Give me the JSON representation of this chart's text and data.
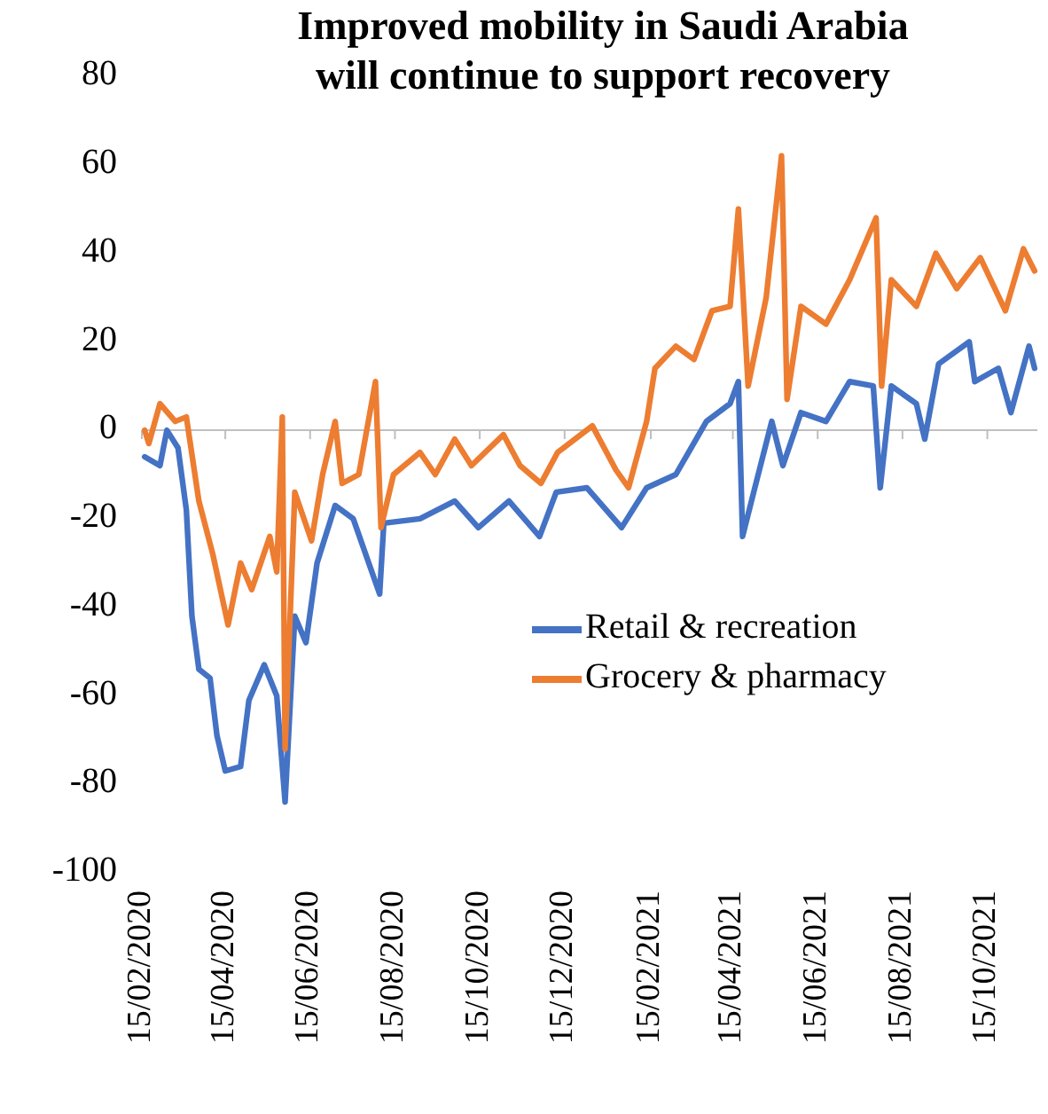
{
  "chart_data": {
    "type": "line",
    "title": "Improved mobility in Saudi Arabia\nwill continue to support recovery",
    "xlim": [
      "2020-02-15",
      "2021-11-20"
    ],
    "xticks": [
      {
        "value": "2020-02-15",
        "label": "15/02/2020"
      },
      {
        "value": "2020-04-15",
        "label": "15/04/2020"
      },
      {
        "value": "2020-06-15",
        "label": "15/06/2020"
      },
      {
        "value": "2020-08-15",
        "label": "15/08/2020"
      },
      {
        "value": "2020-10-15",
        "label": "15/10/2020"
      },
      {
        "value": "2020-12-15",
        "label": "15/12/2020"
      },
      {
        "value": "2021-02-15",
        "label": "15/02/2021"
      },
      {
        "value": "2021-04-15",
        "label": "15/04/2021"
      },
      {
        "value": "2021-06-15",
        "label": "15/06/2021"
      },
      {
        "value": "2021-08-15",
        "label": "15/08/2021"
      },
      {
        "value": "2021-10-15",
        "label": "15/10/2021"
      }
    ],
    "ylim": [
      -100,
      80
    ],
    "yticks": [
      -100,
      -80,
      -60,
      -40,
      -20,
      0,
      20,
      40,
      60,
      80
    ],
    "grid": false,
    "ref_lines": [
      {
        "axis": "y",
        "value": 0,
        "color": "#bfbfbf"
      }
    ],
    "legend": "right",
    "line_style": "solid",
    "marker": "none",
    "series": [
      {
        "name": "Retail & recreation",
        "color": "#4472c4",
        "x": [
          "2020-02-17",
          "2020-02-28",
          "2020-03-04",
          "2020-03-12",
          "2020-03-18",
          "2020-03-22",
          "2020-03-27",
          "2020-04-04",
          "2020-04-09",
          "2020-04-15",
          "2020-04-26",
          "2020-05-02",
          "2020-05-13",
          "2020-05-22",
          "2020-05-28",
          "2020-06-04",
          "2020-06-12",
          "2020-06-20",
          "2020-07-03",
          "2020-07-16",
          "2020-08-04",
          "2020-08-07",
          "2020-09-02",
          "2020-09-27",
          "2020-10-14",
          "2020-11-05",
          "2020-11-27",
          "2020-12-09",
          "2020-12-31",
          "2021-01-25",
          "2021-02-12",
          "2021-03-05",
          "2021-03-27",
          "2021-04-13",
          "2021-04-19",
          "2021-04-22",
          "2021-04-30",
          "2021-05-13",
          "2021-05-21",
          "2021-06-03",
          "2021-06-21",
          "2021-07-08",
          "2021-07-25",
          "2021-07-30",
          "2021-08-07",
          "2021-08-25",
          "2021-08-31",
          "2021-09-10",
          "2021-10-02",
          "2021-10-06",
          "2021-10-23",
          "2021-11-01",
          "2021-11-14",
          "2021-11-18"
        ],
        "values": [
          -6,
          -8,
          0,
          -4,
          -18,
          -42,
          -54,
          -56,
          -69,
          -77,
          -76,
          -61,
          -53,
          -60,
          -84,
          -42,
          -48,
          -30,
          -17,
          -20,
          -37,
          -21,
          -20,
          -16,
          -22,
          -16,
          -24,
          -14,
          -13,
          -22,
          -13,
          -10,
          2,
          6,
          11,
          -24,
          -14,
          2,
          -8,
          4,
          2,
          11,
          10,
          -13,
          10,
          6,
          -2,
          15,
          20,
          11,
          14,
          4,
          19,
          14
        ]
      },
      {
        "name": "Grocery & pharmacy",
        "color": "#ed7d31",
        "x": [
          "2020-02-17",
          "2020-02-20",
          "2020-02-28",
          "2020-03-10",
          "2020-03-18",
          "2020-03-27",
          "2020-04-06",
          "2020-04-17",
          "2020-04-26",
          "2020-05-04",
          "2020-05-17",
          "2020-05-22",
          "2020-05-26",
          "2020-05-28",
          "2020-06-04",
          "2020-06-16",
          "2020-06-24",
          "2020-07-03",
          "2020-07-08",
          "2020-07-20",
          "2020-08-01",
          "2020-08-05",
          "2020-08-14",
          "2020-09-02",
          "2020-09-13",
          "2020-09-27",
          "2020-10-09",
          "2020-11-01",
          "2020-11-13",
          "2020-11-28",
          "2020-12-10",
          "2021-01-04",
          "2021-01-21",
          "2021-01-30",
          "2021-02-12",
          "2021-02-18",
          "2021-03-05",
          "2021-03-18",
          "2021-03-31",
          "2021-04-13",
          "2021-04-19",
          "2021-04-26",
          "2021-05-09",
          "2021-05-20",
          "2021-05-24",
          "2021-06-03",
          "2021-06-21",
          "2021-07-08",
          "2021-07-27",
          "2021-07-31",
          "2021-08-07",
          "2021-08-25",
          "2021-09-08",
          "2021-09-23",
          "2021-10-10",
          "2021-10-28",
          "2021-11-10",
          "2021-11-18"
        ],
        "values": [
          0,
          -3,
          6,
          2,
          3,
          -16,
          -28,
          -44,
          -30,
          -36,
          -24,
          -32,
          3,
          -72,
          -14,
          -25,
          -10,
          2,
          -12,
          -10,
          11,
          -22,
          -10,
          -5,
          -10,
          -2,
          -8,
          -1,
          -8,
          -12,
          -5,
          1,
          -9,
          -13,
          2,
          14,
          19,
          16,
          27,
          28,
          50,
          10,
          30,
          62,
          7,
          28,
          24,
          34,
          48,
          10,
          34,
          28,
          40,
          32,
          39,
          27,
          41,
          36
        ]
      }
    ]
  }
}
